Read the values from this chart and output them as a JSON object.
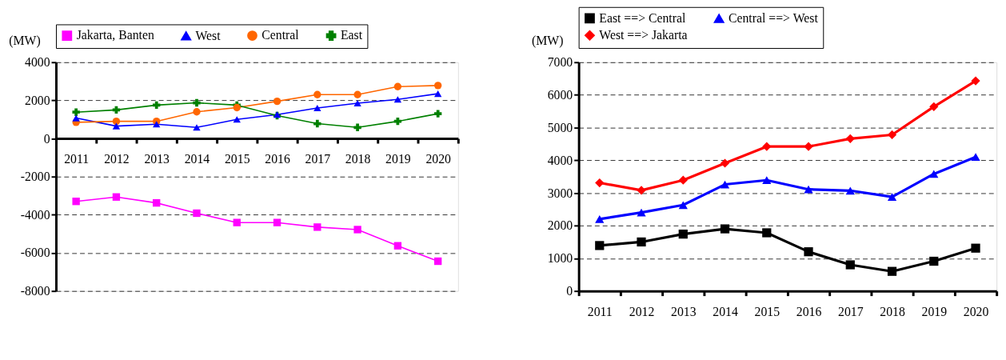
{
  "chart_data": [
    {
      "type": "line",
      "ylabel": "(MW)",
      "categories": [
        "2011",
        "2012",
        "2013",
        "2014",
        "2015",
        "2016",
        "2017",
        "2018",
        "2019",
        "2020"
      ],
      "ylim": [
        -8000,
        4000
      ],
      "yticks": [
        -8000,
        -6000,
        -4000,
        -2000,
        0,
        2000,
        4000
      ],
      "grid": "y",
      "legend": "top",
      "line_style": "solid",
      "series": [
        {
          "name": "Jakarta, Banten",
          "color": "#ff00ff",
          "marker": "square",
          "values": [
            -3300,
            -3070,
            -3380,
            -3920,
            -4410,
            -4410,
            -4650,
            -4780,
            -5630,
            -6440
          ]
        },
        {
          "name": "West",
          "color": "#0000ff",
          "marker": "triangle",
          "values": [
            1070,
            650,
            750,
            580,
            1000,
            1250,
            1600,
            1850,
            2050,
            2350
          ]
        },
        {
          "name": "Central",
          "color": "#ff6600",
          "marker": "circle",
          "values": [
            850,
            900,
            900,
            1400,
            1620,
            1950,
            2300,
            2300,
            2720,
            2780
          ]
        },
        {
          "name": "East",
          "color": "#008000",
          "marker": "cross",
          "values": [
            1380,
            1500,
            1750,
            1870,
            1750,
            1200,
            780,
            580,
            900,
            1300
          ]
        }
      ]
    },
    {
      "type": "line",
      "ylabel": "(MW)",
      "categories": [
        "2011",
        "2012",
        "2013",
        "2014",
        "2015",
        "2016",
        "2017",
        "2018",
        "2019",
        "2020"
      ],
      "ylim": [
        0,
        7000
      ],
      "yticks": [
        0,
        1000,
        2000,
        3000,
        4000,
        5000,
        6000,
        7000
      ],
      "grid": "y",
      "legend": "top",
      "line_style": "solid",
      "series": [
        {
          "name": "East ==> Central",
          "color": "#000000",
          "marker": "square",
          "values": [
            1390,
            1500,
            1740,
            1900,
            1780,
            1200,
            800,
            600,
            910,
            1310
          ]
        },
        {
          "name": "Central ==> West",
          "color": "#0000ff",
          "marker": "triangle",
          "values": [
            2200,
            2400,
            2630,
            3260,
            3390,
            3110,
            3070,
            2880,
            3580,
            4100
          ]
        },
        {
          "name": "West ==> Jakarta",
          "color": "#ff0000",
          "marker": "diamond",
          "values": [
            3310,
            3080,
            3390,
            3910,
            4420,
            4420,
            4660,
            4780,
            5640,
            6430
          ]
        }
      ]
    }
  ]
}
